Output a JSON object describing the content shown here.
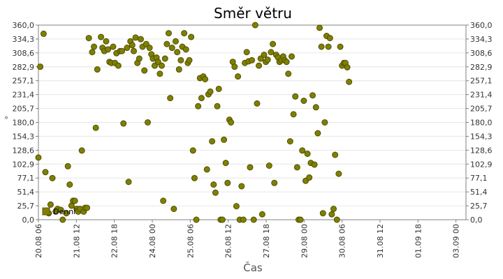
{
  "chart_data": {
    "type": "scatter",
    "title": "Směr větru",
    "xlabel": "Čas",
    "ylabel": "°",
    "ylim": [
      0,
      360
    ],
    "yticks": [
      "0,0",
      "25,7",
      "51,4",
      "77,1",
      "102,9",
      "128,6",
      "154,3",
      "180,0",
      "205,7",
      "231,4",
      "257,1",
      "282,9",
      "308,6",
      "334,3",
      "360,0"
    ],
    "xlim": [
      0,
      14.08
    ],
    "xticks": [
      {
        "x": 0.0,
        "label": "20.08 06"
      },
      {
        "x": 1.25,
        "label": "21.08 12"
      },
      {
        "x": 2.5,
        "label": "22.08 18"
      },
      {
        "x": 3.75,
        "label": "24.08 00"
      },
      {
        "x": 5.0,
        "label": "25.08 06"
      },
      {
        "x": 6.25,
        "label": "26.08 12"
      },
      {
        "x": 7.5,
        "label": "27.08 18"
      },
      {
        "x": 8.75,
        "label": "29.08 00"
      },
      {
        "x": 10.0,
        "label": "30.08 06"
      },
      {
        "x": 11.25,
        "label": "31.08 12"
      },
      {
        "x": 12.5,
        "label": "01.09 18"
      },
      {
        "x": 13.75,
        "label": "03.09 00"
      }
    ],
    "grid": true,
    "legend": {
      "placement": "bottom-left",
      "label": "Denní"
    },
    "series": [
      {
        "name": "Denní",
        "color": "#808000",
        "points": [
          [
            0.0,
            115
          ],
          [
            0.06,
            283
          ],
          [
            0.17,
            344
          ],
          [
            0.23,
            88
          ],
          [
            0.34,
            12
          ],
          [
            0.4,
            28
          ],
          [
            0.46,
            77
          ],
          [
            0.57,
            15
          ],
          [
            0.63,
            20
          ],
          [
            0.74,
            18
          ],
          [
            0.8,
            0
          ],
          [
            0.92,
            12
          ],
          [
            0.97,
            99
          ],
          [
            1.03,
            65
          ],
          [
            1.09,
            26
          ],
          [
            1.14,
            35
          ],
          [
            1.2,
            35
          ],
          [
            1.26,
            20
          ],
          [
            1.31,
            15
          ],
          [
            1.37,
            20
          ],
          [
            1.43,
            128
          ],
          [
            1.49,
            15
          ],
          [
            1.54,
            22
          ],
          [
            1.6,
            22
          ],
          [
            1.66,
            336
          ],
          [
            1.77,
            310
          ],
          [
            1.83,
            320
          ],
          [
            1.89,
            170
          ],
          [
            1.94,
            278
          ],
          [
            2.06,
            338
          ],
          [
            2.11,
            318
          ],
          [
            2.17,
            312
          ],
          [
            2.23,
            330
          ],
          [
            2.29,
            315
          ],
          [
            2.34,
            292
          ],
          [
            2.4,
            290
          ],
          [
            2.46,
            320
          ],
          [
            2.52,
            290
          ],
          [
            2.57,
            308
          ],
          [
            2.63,
            285
          ],
          [
            2.69,
            312
          ],
          [
            2.75,
            312
          ],
          [
            2.8,
            178
          ],
          [
            2.92,
            318
          ],
          [
            2.97,
            70
          ],
          [
            3.03,
            330
          ],
          [
            3.09,
            323
          ],
          [
            3.14,
            312
          ],
          [
            3.2,
            337
          ],
          [
            3.26,
            290
          ],
          [
            3.32,
            298
          ],
          [
            3.37,
            334
          ],
          [
            3.43,
            320
          ],
          [
            3.49,
            276
          ],
          [
            3.55,
            325
          ],
          [
            3.6,
            180
          ],
          [
            3.66,
            318
          ],
          [
            3.72,
            306
          ],
          [
            3.77,
            298
          ],
          [
            3.83,
            285
          ],
          [
            3.89,
            300
          ],
          [
            3.94,
            292
          ],
          [
            4.0,
            270
          ],
          [
            4.06,
            285
          ],
          [
            4.11,
            35
          ],
          [
            4.17,
            298
          ],
          [
            4.23,
            325
          ],
          [
            4.29,
            345
          ],
          [
            4.34,
            225
          ],
          [
            4.4,
            318
          ],
          [
            4.46,
            20
          ],
          [
            4.52,
            330
          ],
          [
            4.57,
            310
          ],
          [
            4.63,
            278
          ],
          [
            4.69,
            295
          ],
          [
            4.74,
            320
          ],
          [
            4.8,
            345
          ],
          [
            4.86,
            315
          ],
          [
            4.92,
            290
          ],
          [
            4.97,
            295
          ],
          [
            5.03,
            338
          ],
          [
            5.09,
            128
          ],
          [
            5.14,
            77
          ],
          [
            5.2,
            0
          ],
          [
            5.26,
            210
          ],
          [
            5.32,
            262
          ],
          [
            5.37,
            225
          ],
          [
            5.43,
            265
          ],
          [
            5.49,
            260
          ],
          [
            5.55,
            93
          ],
          [
            5.6,
            232
          ],
          [
            5.66,
            237
          ],
          [
            5.72,
            145
          ],
          [
            5.77,
            65
          ],
          [
            5.83,
            50
          ],
          [
            5.89,
            210
          ],
          [
            5.94,
            242
          ],
          [
            6.0,
            0
          ],
          [
            6.06,
            0
          ],
          [
            6.11,
            148
          ],
          [
            6.17,
            105
          ],
          [
            6.23,
            68
          ],
          [
            6.29,
            185
          ],
          [
            6.34,
            180
          ],
          [
            6.4,
            292
          ],
          [
            6.46,
            283
          ],
          [
            6.52,
            25
          ],
          [
            6.57,
            265
          ],
          [
            6.63,
            0
          ],
          [
            6.69,
            62
          ],
          [
            6.75,
            0
          ],
          [
            6.8,
            290
          ],
          [
            6.86,
            310
          ],
          [
            6.92,
            293
          ],
          [
            6.97,
            97
          ],
          [
            7.03,
            295
          ],
          [
            7.09,
            0
          ],
          [
            7.14,
            360
          ],
          [
            7.2,
            215
          ],
          [
            7.26,
            285
          ],
          [
            7.32,
            298
          ],
          [
            7.37,
            10
          ],
          [
            7.43,
            305
          ],
          [
            7.49,
            292
          ],
          [
            7.55,
            296
          ],
          [
            7.6,
            100
          ],
          [
            7.66,
            310
          ],
          [
            7.72,
            325
          ],
          [
            7.77,
            68
          ],
          [
            7.83,
            305
          ],
          [
            7.89,
            300
          ],
          [
            7.94,
            292
          ],
          [
            8.0,
            295
          ],
          [
            8.06,
            302
          ],
          [
            8.11,
            295
          ],
          [
            8.17,
            292
          ],
          [
            8.23,
            270
          ],
          [
            8.29,
            145
          ],
          [
            8.34,
            302
          ],
          [
            8.4,
            195
          ],
          [
            8.46,
            228
          ],
          [
            8.52,
            97
          ],
          [
            8.57,
            0
          ],
          [
            8.63,
            0
          ],
          [
            8.69,
            128
          ],
          [
            8.74,
            220
          ],
          [
            8.8,
            72
          ],
          [
            8.86,
            122
          ],
          [
            8.92,
            78
          ],
          [
            8.97,
            105
          ],
          [
            9.03,
            230
          ],
          [
            9.09,
            102
          ],
          [
            9.14,
            208
          ],
          [
            9.2,
            160
          ],
          [
            9.26,
            355
          ],
          [
            9.32,
            320
          ],
          [
            9.37,
            12
          ],
          [
            9.43,
            180
          ],
          [
            9.49,
            340
          ],
          [
            9.55,
            320
          ],
          [
            9.6,
            336
          ],
          [
            9.66,
            10
          ],
          [
            9.72,
            20
          ],
          [
            9.77,
            120
          ],
          [
            9.83,
            0
          ],
          [
            9.89,
            85
          ],
          [
            9.94,
            320
          ],
          [
            10.0,
            285
          ],
          [
            10.06,
            290
          ],
          [
            10.11,
            290
          ],
          [
            10.17,
            282
          ],
          [
            10.23,
            255
          ]
        ]
      }
    ]
  }
}
